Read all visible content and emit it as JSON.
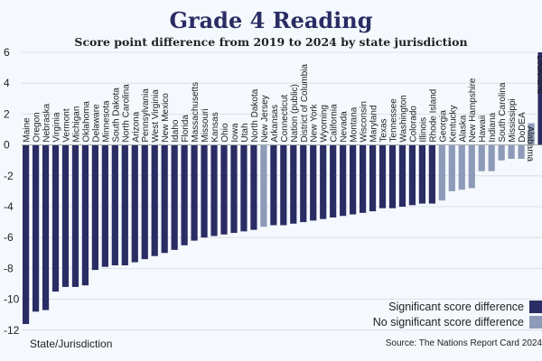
{
  "title": "Grade 4 Reading",
  "subtitle": "Score point difference from 2019 to 2024 by state jurisdiction",
  "footer_left": "State/Jurisdiction",
  "source": "Source: The Nations Report Card 2024",
  "colors": {
    "significant": "#2a2c64",
    "not_significant": "#8d9bb8",
    "grid": "#d6dbe6",
    "background": "#f5f8fc"
  },
  "legend": [
    {
      "label": "Significant score difference",
      "color": "#2a2c64"
    },
    {
      "label": "No significant score difference",
      "color": "#8d9bb8"
    }
  ],
  "chart_data": {
    "type": "bar",
    "title": "Grade 4 Reading",
    "subtitle": "Score point difference from 2019 to 2024 by state jurisdiction",
    "xlabel": "State/Jurisdiction",
    "ylabel": "",
    "ylim": [
      -12,
      6
    ],
    "yticks": [
      6,
      4,
      2,
      0,
      -2,
      -4,
      -6,
      -8,
      -10,
      -12
    ],
    "grid": true,
    "legend_position": "bottom-right",
    "categories": [
      "Maine",
      "Oregon",
      "Nebraska",
      "Virginia",
      "Vermont",
      "Michigan",
      "Oklahoma",
      "Delaware",
      "Minnesota",
      "South Dakota",
      "North Carolina",
      "Arizona",
      "Pennsylvania",
      "West Virginia",
      "New Mexico",
      "Idaho",
      "Florida",
      "Massachusetts",
      "Missouri",
      "Kansas",
      "Ohio",
      "Iowa",
      "Utah",
      "North Dakota",
      "New Jersey",
      "Arkansas",
      "Connecticut",
      "Nation (public)",
      "District of Columbia",
      "New York",
      "Wyoming",
      "California",
      "Nevada",
      "Montana",
      "Wisconsin",
      "Maryland",
      "Texas",
      "Tennessee",
      "Washington",
      "Colorado",
      "Illinois",
      "Rhode Island",
      "Georgia",
      "Kentucky",
      "Alaska",
      "New Hampshire",
      "Hawaii",
      "Indiana",
      "South Carolina",
      "Mississippi",
      "DoDEA",
      "Alabama",
      "Louisiana"
    ],
    "values": [
      -11.6,
      -10.8,
      -10.7,
      -9.5,
      -9.2,
      -9.2,
      -9.1,
      -8.1,
      -7.9,
      -7.8,
      -7.8,
      -7.6,
      -7.4,
      -7.2,
      -7.0,
      -6.8,
      -6.5,
      -6.2,
      -6.0,
      -5.9,
      -5.8,
      -5.7,
      -5.6,
      -5.5,
      -5.3,
      -5.2,
      -5.2,
      -5.1,
      -5.0,
      -4.9,
      -4.8,
      -4.7,
      -4.6,
      -4.5,
      -4.4,
      -4.3,
      -4.1,
      -4.1,
      -4.0,
      -3.9,
      -3.8,
      -3.8,
      -3.6,
      -3.0,
      -2.9,
      -2.8,
      -1.7,
      -1.7,
      -1.0,
      -0.9,
      -0.9,
      1.4,
      6.0
    ],
    "significant": [
      true,
      true,
      true,
      true,
      true,
      true,
      true,
      true,
      true,
      true,
      true,
      true,
      true,
      true,
      true,
      true,
      true,
      true,
      true,
      true,
      true,
      true,
      true,
      true,
      false,
      true,
      true,
      true,
      true,
      true,
      true,
      true,
      true,
      true,
      true,
      true,
      true,
      true,
      true,
      true,
      true,
      true,
      false,
      false,
      false,
      false,
      false,
      false,
      false,
      false,
      false,
      false,
      true
    ]
  }
}
